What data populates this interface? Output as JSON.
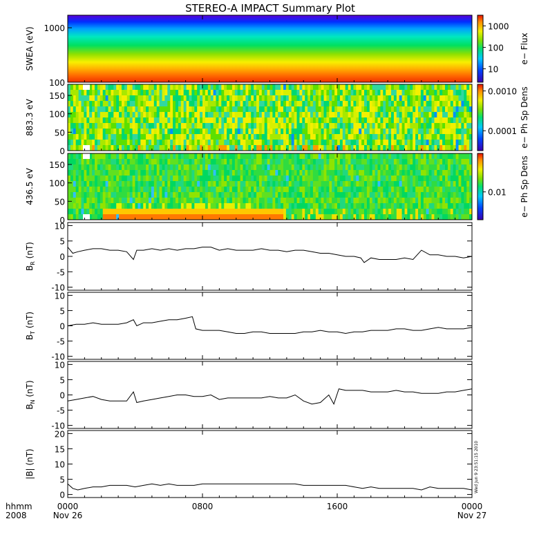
{
  "title": "STEREO-A IMPACT Summary Plot",
  "footer": {
    "left_top": "hhmm",
    "left_bottom": "2008",
    "date_start": "Nov 26",
    "date_end": "Nov 27",
    "timestamp": "Wed Jun  9 23:51:15 2010"
  },
  "chart_data": [
    {
      "type": "heatmap",
      "id": "swea",
      "ylabel": "SWEA (eV)",
      "y_scale": "log",
      "ylim": [
        100,
        1700
      ],
      "ytick_labels": [
        "100",
        "1000"
      ],
      "colorbar_label": "e− Flux",
      "colorbar_ticks": [
        "10",
        "100",
        "1000"
      ]
    },
    {
      "type": "heatmap",
      "id": "pad883",
      "ylabel": "883.3 eV",
      "ylim": [
        0,
        180
      ],
      "ytick_labels": [
        "0",
        "50",
        "100",
        "150"
      ],
      "colorbar_label": "e− Ph Sp Dens",
      "colorbar_ticks": [
        "0.0001",
        "0.0010"
      ]
    },
    {
      "type": "heatmap",
      "id": "pad436",
      "ylabel": "436.5 eV",
      "ylim": [
        0,
        180
      ],
      "ytick_labels": [
        "0",
        "50",
        "100",
        "150"
      ],
      "colorbar_label": "e− Ph Sp Dens",
      "colorbar_ticks": [
        "0.01"
      ]
    },
    {
      "type": "line",
      "id": "br",
      "ylabel": "B",
      "ylabel_sub": "R",
      "ylabel_unit": " (nT)",
      "ylim": [
        -11,
        11
      ],
      "ytick_labels": [
        "-10",
        "-5",
        "0",
        "5",
        "10"
      ],
      "x_hours": [
        0,
        0.3,
        0.6,
        1,
        1.5,
        2,
        2.5,
        3,
        3.5,
        3.9,
        4.1,
        4.5,
        5,
        5.5,
        6,
        6.5,
        7,
        7.5,
        8,
        8.5,
        9,
        9.5,
        10,
        10.5,
        11,
        11.5,
        12,
        12.5,
        13,
        13.5,
        14,
        14.5,
        15,
        15.5,
        16,
        16.5,
        17,
        17.4,
        17.6,
        18,
        18.5,
        19,
        19.5,
        20,
        20.5,
        21,
        21.5,
        22,
        22.5,
        23,
        23.5,
        24
      ],
      "values": [
        3,
        1,
        1.5,
        2,
        2.5,
        2.5,
        2,
        2,
        1.5,
        -1,
        2,
        2,
        2.5,
        2,
        2.5,
        2,
        2.5,
        2.5,
        3,
        3,
        2,
        2.5,
        2,
        2,
        2,
        2.5,
        2,
        2,
        1.5,
        2,
        2,
        1.5,
        1,
        1,
        0.5,
        0,
        0,
        -0.5,
        -2,
        -0.5,
        -1,
        -1,
        -1,
        -0.5,
        -1,
        2,
        0.5,
        0.5,
        0,
        0,
        -0.5,
        0
      ]
    },
    {
      "type": "line",
      "id": "bt",
      "ylabel": "B",
      "ylabel_sub": "T",
      "ylabel_unit": " (nT)",
      "ylim": [
        -11,
        11
      ],
      "ytick_labels": [
        "-10",
        "-5",
        "0",
        "5",
        "10"
      ],
      "x_hours": [
        0,
        0.5,
        1,
        1.5,
        2,
        2.5,
        3,
        3.5,
        3.9,
        4.1,
        4.5,
        5,
        5.5,
        6,
        6.5,
        7,
        7.4,
        7.6,
        8,
        8.5,
        9,
        9.5,
        10,
        10.5,
        11,
        11.5,
        12,
        12.5,
        13,
        13.5,
        14,
        14.5,
        15,
        15.5,
        16,
        16.5,
        17,
        17.5,
        18,
        18.5,
        19,
        19.5,
        20,
        20.5,
        21,
        21.5,
        22,
        22.5,
        23,
        23.5,
        24
      ],
      "values": [
        0,
        0.5,
        0.5,
        1,
        0.5,
        0.5,
        0.5,
        1,
        2,
        0,
        1,
        1,
        1.5,
        2,
        2,
        2.5,
        3,
        -1,
        -1.5,
        -1.5,
        -1.5,
        -2,
        -2.5,
        -2.5,
        -2,
        -2,
        -2.5,
        -2.5,
        -2.5,
        -2.5,
        -2,
        -2,
        -1.5,
        -2,
        -2,
        -2.5,
        -2,
        -2,
        -1.5,
        -1.5,
        -1.5,
        -1,
        -1,
        -1.5,
        -1.5,
        -1,
        -0.5,
        -1,
        -1,
        -1,
        -0.5
      ]
    },
    {
      "type": "line",
      "id": "bn",
      "ylabel": "B",
      "ylabel_sub": "N",
      "ylabel_unit": " (nT)",
      "ylim": [
        -11,
        11
      ],
      "ytick_labels": [
        "-10",
        "-5",
        "0",
        "5",
        "10"
      ],
      "x_hours": [
        0,
        0.5,
        1,
        1.5,
        2,
        2.5,
        3,
        3.5,
        3.9,
        4.1,
        4.5,
        5,
        5.5,
        6,
        6.5,
        7,
        7.5,
        8,
        8.5,
        9,
        9.5,
        10,
        10.5,
        11,
        11.5,
        12,
        12.5,
        13,
        13.5,
        14,
        14.5,
        15,
        15.5,
        15.8,
        16.1,
        16.5,
        17,
        17.5,
        18,
        18.5,
        19,
        19.5,
        20,
        20.5,
        21,
        21.5,
        22,
        22.5,
        23,
        23.5,
        24
      ],
      "values": [
        -2,
        -1.5,
        -1,
        -0.5,
        -1.5,
        -2,
        -2,
        -2,
        1,
        -2.5,
        -2,
        -1.5,
        -1,
        -0.5,
        0,
        0,
        -0.5,
        -0.5,
        0,
        -1.5,
        -1,
        -1,
        -1,
        -1,
        -1,
        -0.5,
        -1,
        -1,
        0,
        -2,
        -3,
        -2.5,
        0,
        -3,
        2,
        1.5,
        1.5,
        1.5,
        1,
        1,
        1,
        1.5,
        1,
        1,
        0.5,
        0.5,
        0.5,
        1,
        1,
        1.5,
        2
      ]
    },
    {
      "type": "line",
      "id": "bmag",
      "ylabel": "|B| (nT)",
      "ylim": [
        -1,
        21
      ],
      "ytick_labels": [
        "0",
        "5",
        "10",
        "15",
        "20"
      ],
      "x_hours": [
        0,
        0.3,
        0.6,
        1,
        1.5,
        2,
        2.5,
        3,
        3.5,
        4,
        4.5,
        5,
        5.5,
        6,
        6.5,
        7,
        7.5,
        8,
        8.5,
        9,
        9.5,
        10,
        10.5,
        11,
        11.5,
        12,
        12.5,
        13,
        13.5,
        14,
        14.5,
        15,
        15.5,
        16,
        16.5,
        17,
        17.5,
        18,
        18.5,
        19,
        19.5,
        20,
        20.5,
        21,
        21.5,
        22,
        22.5,
        23,
        23.5,
        24
      ],
      "values": [
        3.5,
        2,
        1.5,
        2,
        2.5,
        2.5,
        3,
        3,
        3,
        2.5,
        3,
        3.5,
        3,
        3.5,
        3,
        3,
        3,
        3.5,
        3.5,
        3.5,
        3.5,
        3.5,
        3.5,
        3.5,
        3.5,
        3.5,
        3.5,
        3.5,
        3.5,
        3,
        3,
        3,
        3,
        3,
        3,
        2.5,
        2,
        2.5,
        2,
        2,
        2,
        2,
        2,
        1.5,
        2.5,
        2,
        2,
        2,
        2,
        1.5
      ]
    }
  ],
  "xaxis": {
    "range_hours": [
      0,
      24
    ],
    "tick_labels": [
      "0000",
      "0800",
      "1600",
      "0000"
    ],
    "tick_hours": [
      0,
      8,
      16,
      24
    ]
  }
}
